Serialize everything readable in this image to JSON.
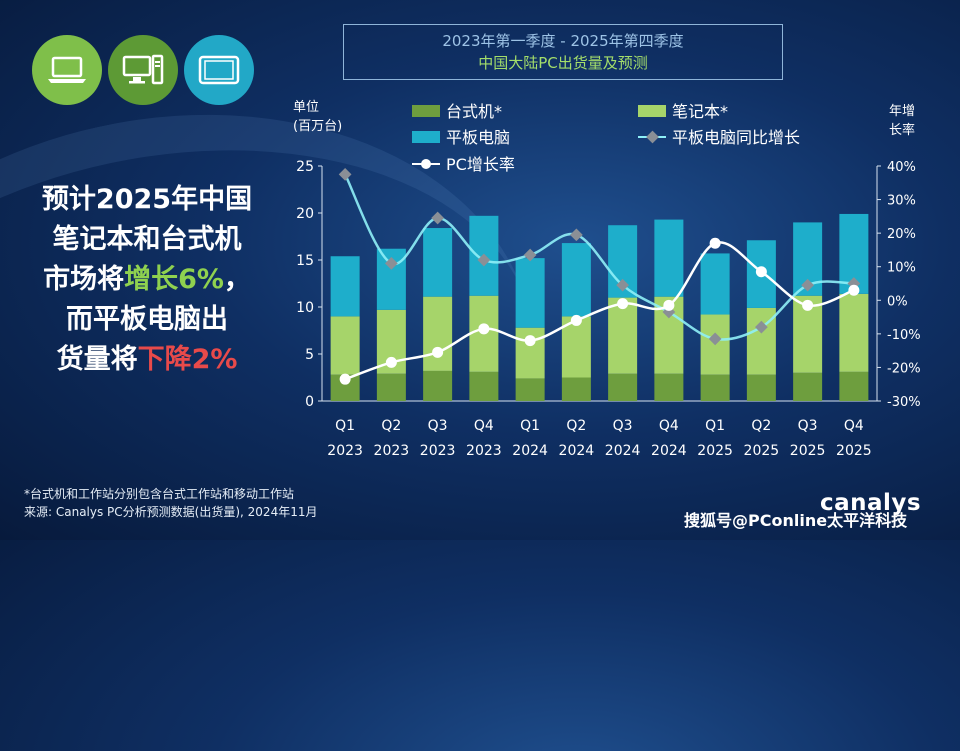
{
  "headline": {
    "line1": "预计2025年中国",
    "line2": "笔记本和台式机",
    "line3_pre": "市场将",
    "line3_hl": "增长6%",
    "line3_post": "，",
    "line4": "而平板电脑出",
    "line5_pre": "货量将",
    "line5_hl": "下降2%"
  },
  "title": {
    "line1": "2023年第一季度 - 2025年第四季度",
    "line2": "中国大陆PC出货量及预测"
  },
  "axis_labels": {
    "left_line1": "单位",
    "left_line2": "(百万台)",
    "right_line1": "年增",
    "right_line2": "长率"
  },
  "footnote": {
    "line1": "*台式机和工作站分别包含台式工作站和移动工作站",
    "line2": "来源: Canalys PC分析预测数据(出货量), 2024年11月"
  },
  "watermark": "搜狐号@PConline太平洋科技",
  "brand": "canalys",
  "icons": [
    "laptop-icon",
    "desktop-icon",
    "tablet-icon"
  ],
  "chart_data": {
    "type": "bar",
    "stacked": true,
    "categories": [
      "Q1\n2023",
      "Q2\n2023",
      "Q3\n2023",
      "Q4\n2023",
      "Q1\n2024",
      "Q2\n2024",
      "Q3\n2024",
      "Q4\n2024",
      "Q1\n2025",
      "Q2\n2025",
      "Q3\n2025",
      "Q4\n2025"
    ],
    "y_left": {
      "min": 0,
      "max": 25,
      "ticks": [
        "0",
        "5",
        "10",
        "15",
        "20",
        "25"
      ]
    },
    "y_right": {
      "min": -30,
      "max": 40,
      "ticks": [
        "-30%",
        "-20%",
        "-10%",
        "0%",
        "10%",
        "20%",
        "30%",
        "40%"
      ]
    },
    "series": [
      {
        "name": "台式机*",
        "kind": "bar",
        "color": "#6e9e3e",
        "values": [
          2.8,
          2.9,
          3.2,
          3.1,
          2.4,
          2.5,
          2.9,
          2.9,
          2.8,
          2.8,
          3.0,
          3.1
        ]
      },
      {
        "name": "笔记本*",
        "kind": "bar",
        "color": "#a6d46a",
        "values": [
          6.2,
          6.8,
          7.9,
          8.1,
          5.4,
          6.5,
          8.1,
          8.2,
          6.4,
          7.1,
          8.2,
          8.3
        ]
      },
      {
        "name": "平板电脑",
        "kind": "bar",
        "color": "#1eaecb",
        "values": [
          6.4,
          6.5,
          7.3,
          8.5,
          7.4,
          7.8,
          7.7,
          8.2,
          6.5,
          7.2,
          7.8,
          8.5
        ]
      },
      {
        "name": "平板电脑同比增长",
        "kind": "line",
        "axis": "right",
        "color": "#8a8f96",
        "values": [
          37.5,
          11,
          24.5,
          12,
          13.5,
          19.5,
          4.5,
          -3.5,
          -11.5,
          -8,
          4.5,
          5
        ]
      },
      {
        "name": "PC增长率",
        "kind": "line",
        "axis": "right",
        "color": "#ffffff",
        "values": [
          -23.5,
          -18.5,
          -15.5,
          -8.5,
          -12,
          -6,
          -1,
          -1.5,
          17,
          8.5,
          -1.5,
          3
        ]
      }
    ],
    "legend": "top"
  }
}
